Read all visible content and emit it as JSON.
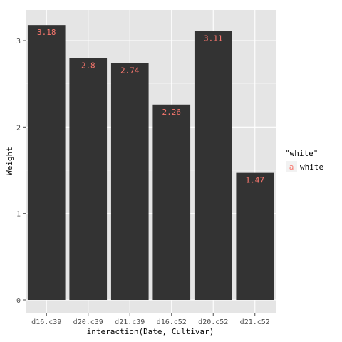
{
  "chart_data": {
    "type": "bar",
    "categories": [
      "d16.c39",
      "d20.c39",
      "d21.c39",
      "d16.c52",
      "d20.c52",
      "d21.c52"
    ],
    "values": [
      3.18,
      2.8,
      2.74,
      2.26,
      3.11,
      1.47
    ],
    "data_labels": [
      "3.18",
      "2.8",
      "2.74",
      "2.26",
      "3.11",
      "1.47"
    ],
    "xlabel": "interaction(Date, Cultivar)",
    "ylabel": "Weight",
    "ylim": [
      0,
      3.2
    ],
    "yticks": [
      0,
      1,
      2,
      3
    ],
    "grid": true,
    "legend": {
      "title": "\"white\"",
      "key_glyph": "a",
      "label": "white",
      "placement": "right"
    },
    "colors": {
      "bar_fill": "#333333",
      "label_color": "#F8766D",
      "panel_background": "#E5E5E5",
      "grid_major": "#FFFFFF",
      "grid_minor": "#F2F2F2",
      "legend_key_bg": "#F2F2F2"
    }
  }
}
